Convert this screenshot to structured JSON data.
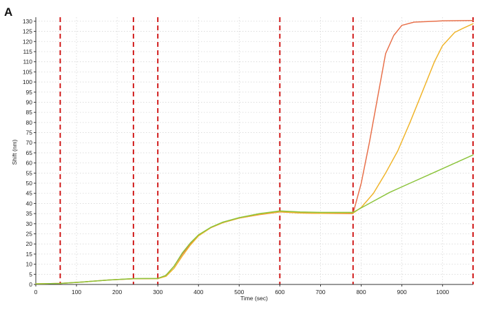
{
  "panel_label": "A",
  "chart_data": {
    "type": "line",
    "xlabel": "Time (sec)",
    "ylabel": "Shift (nm)",
    "xlim": [
      0,
      1075
    ],
    "ylim": [
      0,
      132
    ],
    "xticks": [
      0,
      100,
      200,
      300,
      400,
      500,
      600,
      700,
      800,
      900,
      1000
    ],
    "yticks": [
      0,
      5,
      10,
      15,
      20,
      25,
      30,
      35,
      40,
      45,
      50,
      55,
      60,
      65,
      70,
      75,
      80,
      85,
      90,
      95,
      100,
      105,
      110,
      115,
      120,
      125,
      130
    ],
    "grid": true,
    "step_markers": [
      60,
      240,
      300,
      600,
      780,
      1075
    ],
    "marker_color": "#cc0000",
    "series": [
      {
        "color": "#e8704a",
        "points": [
          [
            0,
            0.3
          ],
          [
            60,
            0.5
          ],
          [
            120,
            1.3
          ],
          [
            180,
            2.2
          ],
          [
            240,
            2.8
          ],
          [
            300,
            2.9
          ],
          [
            320,
            4.5
          ],
          [
            340,
            9
          ],
          [
            360,
            15
          ],
          [
            380,
            20
          ],
          [
            400,
            24.5
          ],
          [
            430,
            28
          ],
          [
            460,
            30.5
          ],
          [
            500,
            32.8
          ],
          [
            550,
            34.5
          ],
          [
            600,
            35.8
          ],
          [
            650,
            35.3
          ],
          [
            700,
            35.1
          ],
          [
            780,
            35
          ],
          [
            800,
            50
          ],
          [
            820,
            70
          ],
          [
            840,
            92
          ],
          [
            860,
            114
          ],
          [
            880,
            123
          ],
          [
            900,
            128
          ],
          [
            930,
            129.6
          ],
          [
            1000,
            130.2
          ],
          [
            1075,
            130.4
          ]
        ]
      },
      {
        "color": "#f0b42a",
        "points": [
          [
            0,
            0.3
          ],
          [
            60,
            0.5
          ],
          [
            120,
            1.3
          ],
          [
            180,
            2.2
          ],
          [
            240,
            2.8
          ],
          [
            300,
            2.9
          ],
          [
            320,
            4
          ],
          [
            340,
            8
          ],
          [
            360,
            14
          ],
          [
            380,
            19.5
          ],
          [
            400,
            24
          ],
          [
            430,
            28
          ],
          [
            460,
            30.5
          ],
          [
            500,
            32.8
          ],
          [
            550,
            34.6
          ],
          [
            600,
            35.9
          ],
          [
            650,
            35.3
          ],
          [
            700,
            35.1
          ],
          [
            780,
            35.2
          ],
          [
            800,
            38
          ],
          [
            830,
            45
          ],
          [
            860,
            55
          ],
          [
            890,
            66
          ],
          [
            920,
            80
          ],
          [
            950,
            95
          ],
          [
            980,
            110
          ],
          [
            1000,
            118
          ],
          [
            1030,
            124.5
          ],
          [
            1050,
            126.5
          ],
          [
            1075,
            128.8
          ]
        ]
      },
      {
        "color": "#8cc43c",
        "points": [
          [
            0,
            0.3
          ],
          [
            60,
            0.5
          ],
          [
            120,
            1.3
          ],
          [
            180,
            2.2
          ],
          [
            240,
            2.9
          ],
          [
            300,
            3
          ],
          [
            320,
            4.5
          ],
          [
            340,
            9
          ],
          [
            360,
            15.5
          ],
          [
            380,
            20.5
          ],
          [
            400,
            24.5
          ],
          [
            430,
            28.2
          ],
          [
            460,
            30.8
          ],
          [
            500,
            33
          ],
          [
            550,
            35
          ],
          [
            600,
            36.3
          ],
          [
            650,
            35.8
          ],
          [
            700,
            35.6
          ],
          [
            780,
            35.6
          ],
          [
            820,
            40
          ],
          [
            870,
            45.5
          ],
          [
            920,
            50
          ],
          [
            970,
            54.5
          ],
          [
            1020,
            59
          ],
          [
            1075,
            64
          ]
        ]
      }
    ]
  }
}
